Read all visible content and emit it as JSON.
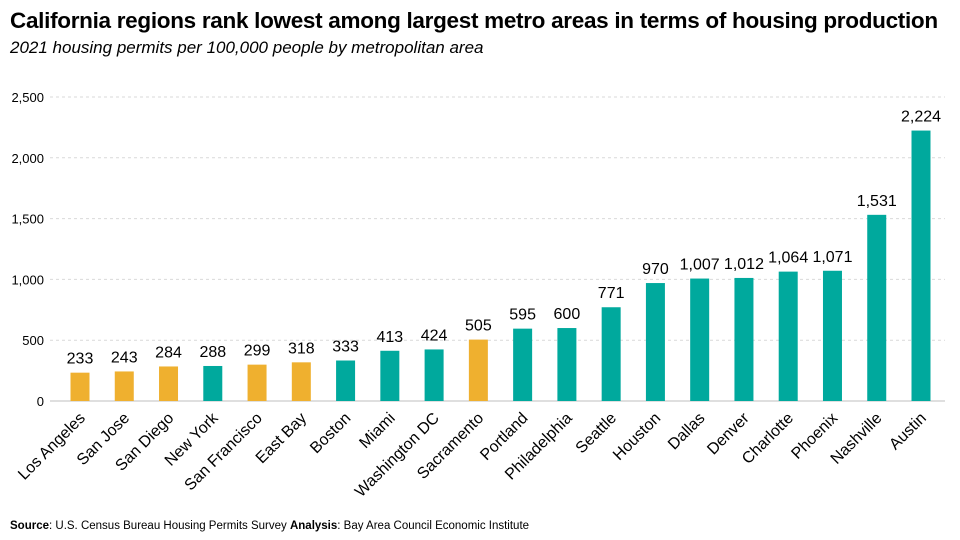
{
  "title": "California regions rank lowest among largest metro areas in terms of housing production",
  "subtitle": "2021 housing permits per 100,000 people by metropolitan area",
  "source": {
    "source_label": "Source",
    "source_text": ": U.S. Census Bureau Housing Permits Survey ",
    "analysis_label": "Analysis",
    "analysis_text": ": Bay Area Council Economic Institute"
  },
  "colors": {
    "california": "#EFB02F",
    "other": "#00A99D",
    "grid": "#d9d9d9"
  },
  "chart_data": {
    "type": "bar",
    "title": "California regions rank lowest among largest metro areas in terms of housing production",
    "subtitle": "2021 housing permits per 100,000 people by metropolitan area",
    "categories": [
      "Los Angeles",
      "San Jose",
      "San Diego",
      "New York",
      "San Francisco",
      "East Bay",
      "Boston",
      "Miami",
      "Washington DC",
      "Sacramento",
      "Portland",
      "Philadelphia",
      "Seattle",
      "Houston",
      "Dallas",
      "Denver",
      "Charlotte",
      "Phoenix",
      "Nashville",
      "Austin"
    ],
    "values": [
      233,
      243,
      284,
      288,
      299,
      318,
      333,
      413,
      424,
      505,
      595,
      600,
      771,
      970,
      1007,
      1012,
      1064,
      1071,
      1531,
      2224
    ],
    "value_labels": [
      "233",
      "243",
      "284",
      "288",
      "299",
      "318",
      "333",
      "413",
      "424",
      "505",
      "595",
      "600",
      "771",
      "970",
      "1,007",
      "1,012",
      "1,064",
      "1,071",
      "1,531",
      "2,224"
    ],
    "california": [
      true,
      true,
      true,
      false,
      true,
      true,
      false,
      false,
      false,
      true,
      false,
      false,
      false,
      false,
      false,
      false,
      false,
      false,
      false,
      false
    ],
    "ylim": [
      0,
      2500
    ],
    "yticks": [
      0,
      500,
      1000,
      1500,
      2000,
      2500
    ],
    "ytick_labels": [
      "0",
      "500",
      "1,000",
      "1,500",
      "2,000",
      "2,500"
    ],
    "grid": "horizontal dashed",
    "xlabel": "",
    "ylabel": ""
  }
}
